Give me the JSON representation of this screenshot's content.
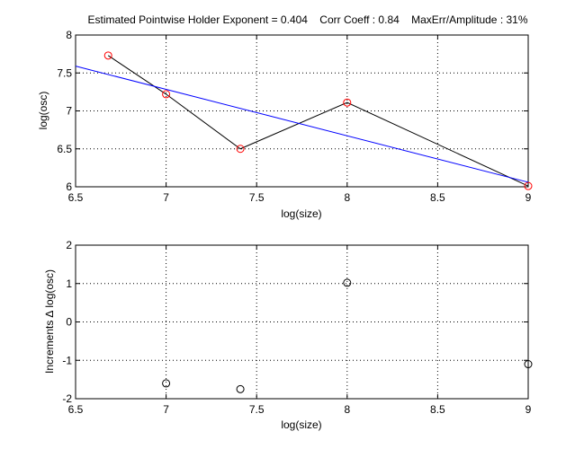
{
  "chart_data": [
    {
      "type": "line",
      "title": "Estimated Pointwise Holder Exponent = 0.404    Corr Coeff : 0.84    MaxErr/Amplitude : 31%",
      "xlabel": "log(size)",
      "ylabel": "log(osc)",
      "xlim": [
        6.5,
        9
      ],
      "ylim": [
        6,
        8
      ],
      "xticks": [
        6.5,
        7,
        7.5,
        8,
        8.5,
        9
      ],
      "xtick_labels": [
        "6.5",
        "7",
        "7.5",
        "8",
        "8.5",
        "9"
      ],
      "yticks": [
        6,
        6.5,
        7,
        7.5,
        8
      ],
      "ytick_labels": [
        "6",
        "6.5",
        "7",
        "7.5",
        "8"
      ],
      "grid": true,
      "series": [
        {
          "style": "line-with-circle-markers",
          "line_color": "#000000",
          "marker_color": "#ff0000",
          "x": [
            6.68,
            7.0,
            7.41,
            8.0,
            9.0
          ],
          "y": [
            7.73,
            7.22,
            6.5,
            7.11,
            6.01
          ]
        },
        {
          "style": "fit-line",
          "line_color": "#0000ff",
          "x": [
            6.5,
            9.0
          ],
          "y": [
            7.59,
            6.06
          ]
        }
      ]
    },
    {
      "type": "scatter",
      "title": "",
      "xlabel": "log(size)",
      "ylabel": "Increments ∆ log(osc)",
      "xlim": [
        6.5,
        9
      ],
      "ylim": [
        -2,
        2
      ],
      "xticks": [
        6.5,
        7,
        7.5,
        8,
        8.5,
        9
      ],
      "xtick_labels": [
        "6.5",
        "7",
        "7.5",
        "8",
        "8.5",
        "9"
      ],
      "yticks": [
        -2,
        -1,
        0,
        1,
        2
      ],
      "ytick_labels": [
        "-2",
        "-1",
        "0",
        "1",
        "2"
      ],
      "grid": true,
      "series": [
        {
          "style": "circle-markers",
          "marker_color": "#000000",
          "x": [
            7.0,
            7.41,
            8.0,
            9.0
          ],
          "y": [
            -1.6,
            -1.75,
            1.02,
            -1.1
          ]
        }
      ]
    }
  ]
}
